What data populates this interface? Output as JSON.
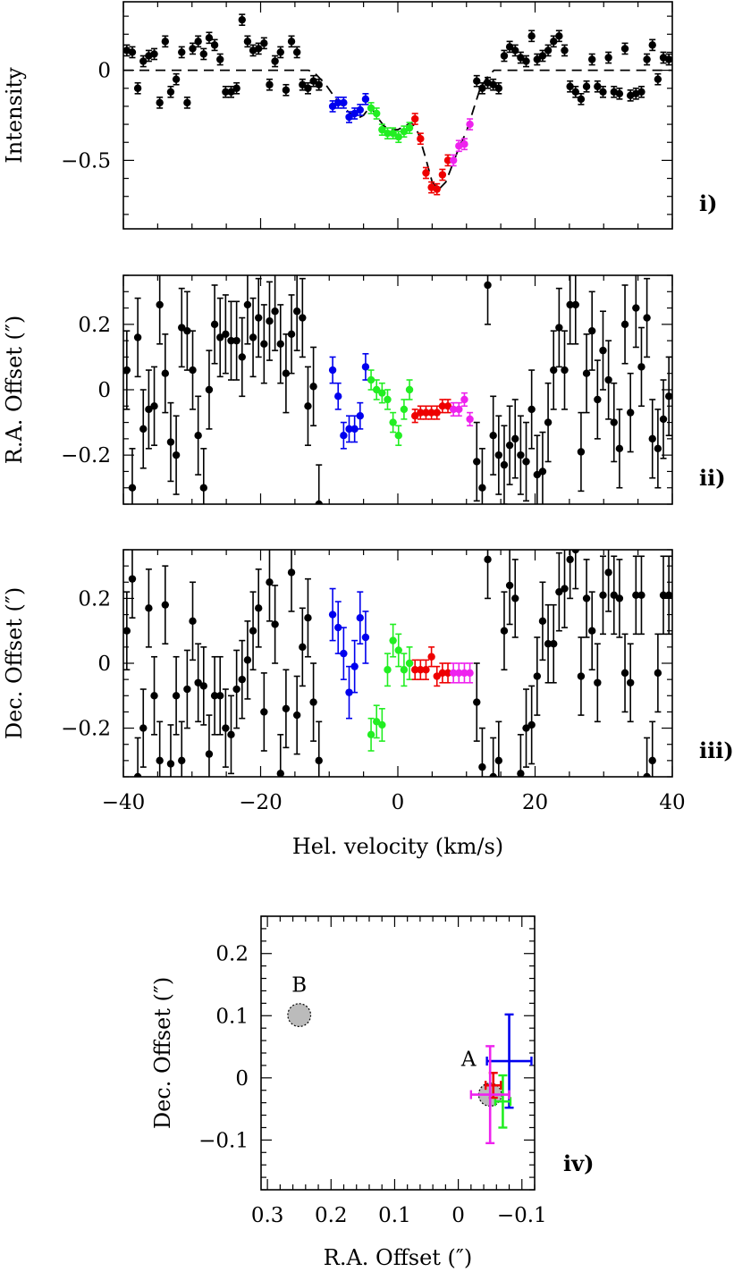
{
  "colors": {
    "black": "#000000",
    "blue": "#0000ee",
    "green": "#22ee22",
    "red": "#ee0000",
    "magenta": "#ee22ee",
    "gray_fill": "#bbbbbb"
  },
  "chart_data": [
    {
      "type": "scatter",
      "panel_label": "i)",
      "ylabel": "Intensity",
      "xlabel": "",
      "xlim": [
        -40,
        40
      ],
      "ylim": [
        -0.88,
        0.38
      ],
      "yticks": [
        0,
        -0.5
      ],
      "ytick_labels": [
        "0",
        "−0.5"
      ],
      "yminor_step": 0.1,
      "xticks": [
        -40,
        -20,
        0,
        20,
        40
      ],
      "xminor_step": 5,
      "model_line": {
        "style": "dashed",
        "x": [
          -40,
          -13,
          -12,
          -10.5,
          -9,
          -7.5,
          -6,
          -5,
          -4,
          -3,
          -2,
          -1,
          0,
          1,
          2,
          3,
          4,
          5,
          6,
          7,
          8,
          9,
          10,
          11,
          12,
          13,
          14,
          40
        ],
        "y": [
          0,
          0,
          -0.02,
          -0.08,
          -0.16,
          -0.22,
          -0.27,
          -0.25,
          -0.2,
          -0.26,
          -0.31,
          -0.33,
          -0.33,
          -0.31,
          -0.29,
          -0.35,
          -0.48,
          -0.62,
          -0.66,
          -0.62,
          -0.52,
          -0.42,
          -0.34,
          -0.22,
          -0.1,
          -0.04,
          0,
          0
        ]
      },
      "series": [
        {
          "color": "black",
          "x": [
            -39.5,
            -38.7,
            -37.9,
            -37.1,
            -36.3,
            -35.5,
            -34.7,
            -33.9,
            -33.1,
            -32.3,
            -31.5,
            -30.7,
            -29.9,
            -29.1,
            -28.3,
            -27.5,
            -26.7,
            -25.9,
            -25.1,
            -24.3,
            -23.5,
            -22.7,
            -21.9,
            -21.1,
            -20.3,
            -19.5,
            -18.7,
            -17.9,
            -17.1,
            -16.3,
            -15.5,
            -14.7,
            -13.9,
            -13.1,
            -12.3,
            -11.5,
            11.5,
            12.3,
            13.1,
            13.9,
            14.7,
            15.5,
            16.3,
            17.1,
            17.9,
            18.7,
            19.5,
            20.3,
            21.1,
            21.9,
            22.7,
            23.5,
            24.3,
            25.1,
            25.9,
            26.7,
            27.5,
            28.3,
            29.1,
            29.9,
            30.7,
            31.5,
            32.3,
            33.1,
            33.9,
            34.7,
            35.5,
            36.3,
            37.1,
            37.9,
            38.7,
            39.5
          ],
          "y": [
            0.11,
            0.1,
            -0.1,
            0.05,
            0.08,
            0.09,
            -0.18,
            0.16,
            -0.12,
            -0.05,
            0.1,
            -0.18,
            0.12,
            0.16,
            0.09,
            0.18,
            0.14,
            0.06,
            -0.12,
            -0.12,
            -0.1,
            0.28,
            0.16,
            0.11,
            0.12,
            0.15,
            -0.08,
            0.05,
            0.1,
            -0.11,
            0.16,
            0.1,
            -0.08,
            -0.1,
            -0.06,
            -0.08,
            -0.06,
            -0.1,
            -0.07,
            -0.08,
            -0.1,
            0.08,
            0.13,
            0.11,
            0.07,
            0.05,
            0.19,
            0.06,
            0.08,
            0.11,
            0.16,
            0.19,
            0.11,
            -0.09,
            -0.12,
            -0.16,
            -0.09,
            0.06,
            -0.09,
            -0.12,
            0.07,
            -0.12,
            -0.13,
            0.12,
            -0.14,
            -0.13,
            -0.12,
            0.06,
            0.14,
            -0.05,
            0.07,
            0.06
          ],
          "yerr": 0.03
        },
        {
          "color": "blue",
          "x": [
            -9.5,
            -8.7,
            -7.9,
            -7.1,
            -6.3,
            -5.5,
            -4.7
          ],
          "y": [
            -0.2,
            -0.18,
            -0.18,
            -0.26,
            -0.24,
            -0.22,
            -0.16
          ],
          "yerr": 0.03
        },
        {
          "color": "green",
          "x": [
            -3.9,
            -3.1,
            -2.3,
            -1.5,
            -0.7,
            0.1,
            0.9,
            1.7
          ],
          "y": [
            -0.21,
            -0.24,
            -0.33,
            -0.35,
            -0.35,
            -0.37,
            -0.34,
            -0.32
          ],
          "yerr": 0.03
        },
        {
          "color": "red",
          "x": [
            2.5,
            3.3,
            4.1,
            4.9,
            5.7,
            6.5,
            7.3
          ],
          "y": [
            -0.27,
            -0.38,
            -0.57,
            -0.65,
            -0.66,
            -0.58,
            -0.5
          ],
          "yerr": 0.03
        },
        {
          "color": "magenta",
          "x": [
            8.1,
            8.9,
            9.7,
            10.5
          ],
          "y": [
            -0.5,
            -0.42,
            -0.41,
            -0.3
          ],
          "yerr": 0.03
        }
      ]
    },
    {
      "type": "scatter",
      "panel_label": "ii)",
      "ylabel": "R.A. Offset (″)",
      "xlabel": "",
      "xlim": [
        -40,
        40
      ],
      "ylim": [
        -0.35,
        0.35
      ],
      "yticks": [
        0.2,
        0,
        -0.2
      ],
      "ytick_labels": [
        "0.2",
        "0",
        "−0.2"
      ],
      "yminor_step": 0.05,
      "xticks": [
        -40,
        -20,
        0,
        20,
        40
      ],
      "xminor_step": 5,
      "series": [
        {
          "color": "black",
          "x": [
            -39.5,
            -38.7,
            -37.9,
            -37.1,
            -36.3,
            -35.5,
            -34.7,
            -33.9,
            -33.1,
            -32.3,
            -31.5,
            -30.7,
            -29.9,
            -29.1,
            -28.3,
            -27.5,
            -26.7,
            -25.9,
            -25.1,
            -24.3,
            -23.5,
            -22.7,
            -21.9,
            -21.1,
            -20.3,
            -19.5,
            -18.7,
            -17.9,
            -17.1,
            -16.3,
            -15.5,
            -14.7,
            -13.9,
            -13.1,
            -12.3,
            -11.5,
            11.5,
            12.3,
            13.1,
            13.9,
            14.7,
            15.5,
            16.3,
            17.1,
            17.9,
            18.7,
            19.5,
            20.3,
            21.1,
            21.9,
            22.7,
            23.5,
            24.3,
            25.1,
            25.9,
            26.7,
            27.5,
            28.3,
            29.1,
            29.9,
            30.7,
            31.5,
            32.3,
            33.1,
            33.9,
            34.7,
            35.5,
            36.3,
            37.1,
            37.9,
            38.7,
            39.5
          ],
          "y": [
            0.06,
            -0.3,
            0.16,
            -0.12,
            -0.06,
            -0.05,
            0.26,
            0.05,
            -0.16,
            -0.2,
            0.19,
            0.18,
            0.06,
            -0.14,
            -0.3,
            0.0,
            0.2,
            0.16,
            0.17,
            0.15,
            0.15,
            0.1,
            0.26,
            0.16,
            0.22,
            0.14,
            0.21,
            0.24,
            0.14,
            0.05,
            0.17,
            0.24,
            0.22,
            -0.05,
            0.01,
            -0.35,
            -0.22,
            -0.3,
            0.32,
            -0.14,
            -0.2,
            -0.23,
            -0.17,
            -0.15,
            -0.2,
            -0.22,
            -0.06,
            -0.26,
            -0.25,
            -0.1,
            0.06,
            0.19,
            0.06,
            0.26,
            0.26,
            -0.19,
            0.05,
            0.18,
            -0.03,
            0.12,
            0.03,
            -0.1,
            -0.18,
            0.2,
            -0.07,
            0.25,
            0.07,
            0.22,
            -0.15,
            -0.18,
            -0.09,
            -0.02
          ],
          "yerr": 0.12
        },
        {
          "color": "blue",
          "x": [
            -9.5,
            -8.7,
            -7.9,
            -7.1,
            -6.3,
            -5.5,
            -4.7
          ],
          "y": [
            0.06,
            -0.02,
            -0.14,
            -0.12,
            -0.12,
            -0.08,
            0.07
          ],
          "yerr": 0.04
        },
        {
          "color": "green",
          "x": [
            -3.9,
            -3.1,
            -2.3,
            -1.5,
            -0.7,
            0.1,
            0.9,
            1.7
          ],
          "y": [
            0.03,
            0.0,
            -0.01,
            -0.03,
            -0.1,
            -0.14,
            -0.06,
            0.0
          ],
          "yerr": 0.03
        },
        {
          "color": "red",
          "x": [
            2.5,
            3.3,
            4.1,
            4.9,
            5.7,
            6.5,
            7.3
          ],
          "y": [
            -0.08,
            -0.07,
            -0.07,
            -0.07,
            -0.07,
            -0.05,
            -0.05
          ],
          "yerr": 0.02
        },
        {
          "color": "magenta",
          "x": [
            8.1,
            8.9,
            9.7,
            10.5
          ],
          "y": [
            -0.06,
            -0.06,
            -0.03,
            -0.09
          ],
          "yerr": 0.02
        }
      ]
    },
    {
      "type": "scatter",
      "panel_label": "iii)",
      "ylabel": "Dec. Offset (″)",
      "xlabel": "Hel. velocity (km/s)",
      "xlim": [
        -40,
        40
      ],
      "ylim": [
        -0.35,
        0.35
      ],
      "yticks": [
        0.2,
        0,
        -0.2
      ],
      "ytick_labels": [
        "0.2",
        "0",
        "−0.2"
      ],
      "yminor_step": 0.05,
      "xticks": [
        -40,
        -20,
        0,
        20,
        40
      ],
      "xtick_labels": [
        "−40",
        "−20",
        "0",
        "20",
        "40"
      ],
      "xminor_step": 5,
      "series": [
        {
          "color": "black",
          "x": [
            -39.5,
            -38.7,
            -37.9,
            -37.1,
            -36.3,
            -35.5,
            -34.7,
            -33.9,
            -33.1,
            -32.3,
            -31.5,
            -30.7,
            -29.9,
            -29.1,
            -28.3,
            -27.5,
            -26.7,
            -25.9,
            -25.1,
            -24.3,
            -23.5,
            -22.7,
            -21.9,
            -21.1,
            -20.3,
            -19.5,
            -18.7,
            -17.9,
            -17.1,
            -16.3,
            -15.5,
            -14.7,
            -13.9,
            -13.1,
            -12.3,
            -11.5,
            11.5,
            12.3,
            13.1,
            13.9,
            14.7,
            15.5,
            16.3,
            17.1,
            17.9,
            18.7,
            19.5,
            20.3,
            21.1,
            21.9,
            22.7,
            23.5,
            24.3,
            25.1,
            25.9,
            26.7,
            27.5,
            28.3,
            29.1,
            29.9,
            30.7,
            31.5,
            32.3,
            33.1,
            33.9,
            34.7,
            35.5,
            36.3,
            37.1,
            37.9,
            38.7,
            39.5
          ],
          "y": [
            0.1,
            0.26,
            -0.35,
            -0.2,
            0.17,
            -0.1,
            -0.3,
            0.18,
            -0.31,
            -0.1,
            -0.3,
            -0.08,
            0.13,
            -0.06,
            -0.07,
            -0.28,
            -0.1,
            -0.1,
            -0.2,
            -0.22,
            -0.08,
            -0.05,
            0.01,
            0.1,
            0.17,
            -0.15,
            0.25,
            0.12,
            -0.34,
            -0.14,
            0.28,
            -0.16,
            0.05,
            0.14,
            -0.12,
            -0.3,
            -0.12,
            -0.32,
            0.32,
            -0.35,
            -0.3,
            0.1,
            0.24,
            0.2,
            -0.34,
            -0.2,
            -0.19,
            -0.04,
            0.13,
            0.06,
            0.06,
            0.22,
            0.23,
            0.32,
            0.35,
            -0.04,
            0.2,
            0.1,
            -0.06,
            0.21,
            0.28,
            0.21,
            0.2,
            -0.03,
            -0.06,
            0.21,
            0.21,
            -0.35,
            -0.3,
            -0.03,
            0.21,
            0.21
          ],
          "yerr": 0.12
        },
        {
          "color": "blue",
          "x": [
            -9.5,
            -8.7,
            -7.9,
            -7.1,
            -6.3,
            -5.5,
            -4.7
          ],
          "y": [
            0.15,
            0.11,
            0.03,
            -0.09,
            -0.01,
            0.14,
            0.08
          ],
          "yerr": 0.08
        },
        {
          "color": "green",
          "x": [
            -3.9,
            -3.1,
            -2.3,
            -1.5,
            -0.7,
            0.1,
            0.9,
            1.7
          ],
          "y": [
            -0.22,
            -0.18,
            -0.19,
            -0.02,
            0.07,
            0.04,
            -0.02,
            0.0
          ],
          "yerr": 0.05
        },
        {
          "color": "red",
          "x": [
            2.5,
            3.3,
            4.1,
            4.9,
            5.7,
            6.5,
            7.3
          ],
          "y": [
            -0.02,
            -0.02,
            -0.02,
            0.02,
            -0.04,
            -0.03,
            -0.03
          ],
          "yerr": 0.03
        },
        {
          "color": "magenta",
          "x": [
            8.1,
            8.9,
            9.7,
            10.5
          ],
          "y": [
            -0.03,
            -0.03,
            -0.03,
            -0.03
          ],
          "yerr": 0.03
        }
      ]
    },
    {
      "type": "scatter",
      "panel_label": "iv)",
      "xlabel": "R.A. Offset (″)",
      "ylabel": "Dec. Offset (″)",
      "xlim": [
        0.31,
        -0.12
      ],
      "ylim": [
        -0.18,
        0.26
      ],
      "xticks": [
        0.3,
        0.2,
        0.1,
        0,
        -0.1
      ],
      "xtick_labels": [
        "0.3",
        "0.2",
        "0.1",
        "0",
        "−0.1"
      ],
      "yticks": [
        0.2,
        0.1,
        0,
        -0.1
      ],
      "ytick_labels": [
        "0.2",
        "0.1",
        "0",
        "−0.1"
      ],
      "minor_step": 0.02,
      "components": [
        {
          "name": "A",
          "x": -0.05,
          "y": -0.027,
          "radius": 0.018
        },
        {
          "name": "B",
          "x": 0.25,
          "y": 0.101,
          "radius": 0.018
        }
      ],
      "centroids": [
        {
          "color": "blue",
          "x": -0.08,
          "y": 0.027,
          "xerr": 0.035,
          "yerr": 0.075
        },
        {
          "color": "green",
          "x": -0.07,
          "y": -0.038,
          "xerr": 0.012,
          "yerr": 0.042
        },
        {
          "color": "red",
          "x": -0.055,
          "y": -0.012,
          "xerr": 0.012,
          "yerr": 0.02
        },
        {
          "color": "magenta",
          "x": -0.05,
          "y": -0.027,
          "xerr": 0.03,
          "yerr": 0.078
        }
      ]
    }
  ]
}
